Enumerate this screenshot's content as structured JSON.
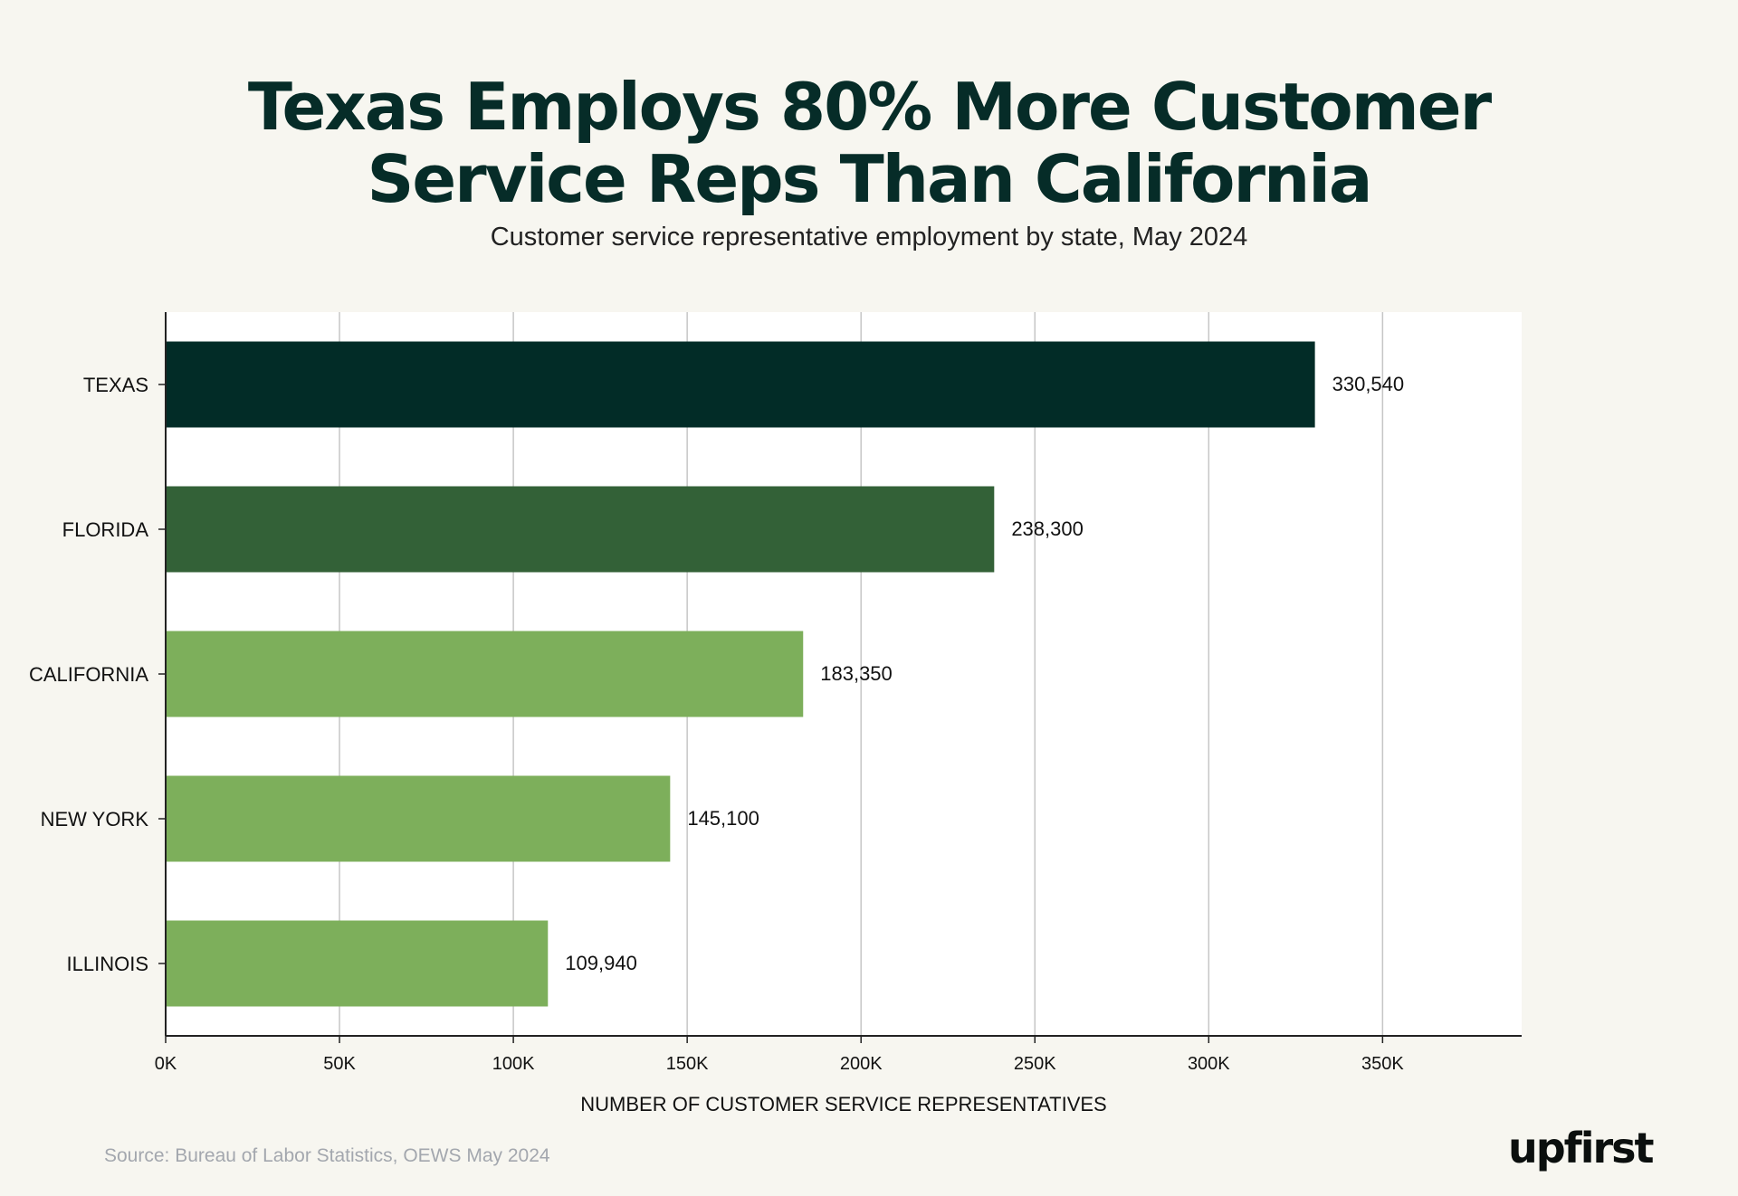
{
  "header": {
    "title_line1": "Texas Employs 80% More Customer",
    "title_line2": "Service Reps Than California",
    "subtitle": "Customer service representative employment by state, May 2024"
  },
  "chart_data": {
    "type": "bar",
    "orientation": "horizontal",
    "categories": [
      "TEXAS",
      "FLORIDA",
      "CALIFORNIA",
      "NEW YORK",
      "ILLINOIS"
    ],
    "values": [
      330540,
      238300,
      183350,
      145100,
      109940
    ],
    "value_labels": [
      "330,540",
      "238,300",
      "183,350",
      "145,100",
      "109,940"
    ],
    "bar_colors": [
      "#022c27",
      "#336137",
      "#7daf5b",
      "#7daf5b",
      "#7daf5b"
    ],
    "xlabel": "NUMBER OF CUSTOMER SERVICE REPRESENTATIVES",
    "ylabel": "",
    "xlim": [
      0,
      390000
    ],
    "xticks": [
      0,
      50000,
      100000,
      150000,
      200000,
      250000,
      300000,
      350000
    ],
    "xtick_labels": [
      "0K",
      "50K",
      "100K",
      "150K",
      "200K",
      "250K",
      "300K",
      "350K"
    ],
    "grid": "vertical"
  },
  "footer": {
    "source": "Source: Bureau of Labor Statistics, OEWS May 2024",
    "logo": "upfirst"
  }
}
